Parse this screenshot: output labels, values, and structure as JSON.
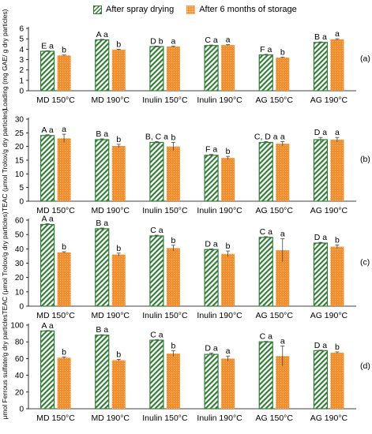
{
  "legend": [
    "After spray drying",
    "After 6 months of storage"
  ],
  "colors": {
    "spray_stroke": "#2e7d32",
    "storage_fill": "#f28e2b",
    "axis": "#000000"
  },
  "chart_data": [
    {
      "type": "bar",
      "panel_label": "(a)",
      "ylabel": "Loading (mg GAE/ g dry particles)",
      "ylim": [
        0,
        6
      ],
      "yticks": [
        0,
        1,
        2,
        3,
        4,
        5,
        6
      ],
      "categories": [
        "MD 150°C",
        "MD 190°C",
        "Inulin 150°C",
        "Inulin 190°C",
        "AG 150°C",
        "AG 190°C"
      ],
      "series": [
        {
          "name": "After spray drying",
          "values": [
            3.8,
            4.9,
            4.25,
            4.35,
            3.45,
            4.65
          ],
          "errors": [
            0.05,
            0.05,
            0.05,
            0.05,
            0.05,
            0.05
          ],
          "labels": [
            "E a",
            "A a",
            "D b",
            "C a",
            "F a",
            "B a"
          ]
        },
        {
          "name": "After 6 months of storage",
          "values": [
            3.4,
            3.95,
            4.25,
            4.4,
            3.2,
            4.95
          ],
          "errors": [
            0.04,
            0.04,
            0.04,
            0.04,
            0.04,
            0.05
          ],
          "labels": [
            "b",
            "b",
            "a",
            "a",
            "b",
            "a"
          ]
        }
      ]
    },
    {
      "type": "bar",
      "panel_label": "(b)",
      "ylabel": "TEAC (μmol Trolox/g dry particles)",
      "ylim": [
        0,
        30
      ],
      "yticks": [
        0,
        5,
        10,
        15,
        20,
        25,
        30
      ],
      "categories": [
        "MD 150°C",
        "MD 190°C",
        "Inulin 150°C",
        "Inulin 190°C",
        "AG 150°C",
        "AG 190°C"
      ],
      "series": [
        {
          "name": "After spray drying",
          "values": [
            24,
            22.5,
            21.5,
            16.8,
            21.5,
            22.5
          ],
          "errors": [
            0.3,
            0.3,
            0.3,
            0.3,
            0.3,
            0.8
          ],
          "labels": [
            "A a",
            "B a",
            "B, C a",
            "F a",
            "C, D a",
            "D a"
          ]
        },
        {
          "name": "After 6 months of storage",
          "values": [
            23,
            20.2,
            20,
            15.8,
            21,
            22.5
          ],
          "errors": [
            1.5,
            0.6,
            1.5,
            0.6,
            0.8,
            0.8
          ],
          "labels": [
            "a",
            "b",
            "b",
            "b",
            "a",
            "a"
          ]
        }
      ]
    },
    {
      "type": "bar",
      "panel_label": "(c)",
      "ylabel": "TEAC (μmol Trolox/g dry particles)",
      "ylim": [
        0,
        60
      ],
      "yticks": [
        0,
        10,
        20,
        30,
        40,
        50,
        60
      ],
      "categories": [
        "MD 150°C",
        "MD 190°C",
        "Inulin 150°C",
        "Inulin 190°C",
        "AG 150°C",
        "AG 190°C"
      ],
      "series": [
        {
          "name": "After spray drying",
          "values": [
            57,
            54,
            49,
            39.5,
            48,
            44
          ],
          "errors": [
            0.5,
            0.5,
            0.5,
            0.5,
            0.5,
            0.5
          ],
          "labels": [
            "A a",
            "B a",
            "C a",
            "D a",
            "C a",
            "D a"
          ]
        },
        {
          "name": "After 6 months of storage",
          "values": [
            37.5,
            36,
            40.5,
            36.5,
            39,
            41.5
          ],
          "errors": [
            0.5,
            1.0,
            2.0,
            2.0,
            8.0,
            1.2
          ],
          "labels": [
            "b",
            "b",
            "b",
            "b",
            "a",
            "b"
          ]
        }
      ]
    },
    {
      "type": "bar",
      "panel_label": "(d)",
      "ylabel": "μmol Ferrous sulfate/g dry particles",
      "ylim": [
        0,
        100
      ],
      "yticks": [
        0,
        20,
        40,
        60,
        80,
        100
      ],
      "categories": [
        "MD 150°C",
        "MD 190°C",
        "Inulin 150°C",
        "Inulin 190°C",
        "AG 150°C",
        "AG 190°C"
      ],
      "series": [
        {
          "name": "After spray drying",
          "values": [
            93,
            88,
            82,
            65,
            80,
            69.5
          ],
          "errors": [
            0.5,
            0.5,
            0.5,
            1.5,
            0.5,
            0.5
          ],
          "labels": [
            "A a",
            "B a",
            "C a",
            "D a",
            "C a",
            "D a"
          ]
        },
        {
          "name": "After 6 months of storage",
          "values": [
            61,
            58,
            66,
            60,
            63,
            67
          ],
          "errors": [
            1.0,
            1.0,
            3.5,
            3.0,
            12.0,
            1.0
          ],
          "labels": [
            "b",
            "b",
            "b",
            "a",
            "a",
            "b"
          ]
        }
      ]
    }
  ]
}
